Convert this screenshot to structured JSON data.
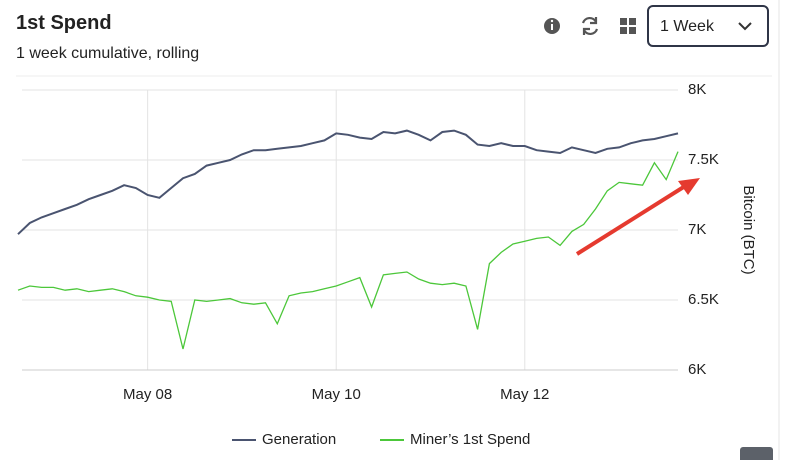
{
  "header": {
    "title": "1st Spend",
    "subtitle": "1 week cumulative, rolling",
    "range_select": "1 Week"
  },
  "chart_data": {
    "type": "line",
    "categories": [
      null,
      null,
      null,
      null,
      null,
      null,
      null,
      null,
      null,
      null,
      null,
      "May 08",
      null,
      null,
      null,
      null,
      null,
      null,
      null,
      null,
      null,
      null,
      null,
      null,
      null,
      null,
      null,
      "May 10",
      null,
      null,
      null,
      null,
      null,
      null,
      null,
      null,
      null,
      null,
      null,
      null,
      null,
      null,
      null,
      "May 12",
      null,
      null,
      null,
      null,
      null,
      null,
      null,
      null,
      null,
      null,
      null,
      null,
      null
    ],
    "series": [
      {
        "name": "Generation",
        "color": "#4a5470",
        "values": [
          6970,
          7050,
          7090,
          7120,
          7150,
          7180,
          7220,
          7250,
          7280,
          7320,
          7300,
          7250,
          7230,
          7300,
          7370,
          7400,
          7460,
          7480,
          7500,
          7540,
          7570,
          7570,
          7580,
          7590,
          7600,
          7620,
          7640,
          7690,
          7680,
          7660,
          7650,
          7700,
          7690,
          7710,
          7680,
          7640,
          7700,
          7710,
          7680,
          7610,
          7600,
          7620,
          7600,
          7600,
          7570,
          7560,
          7550,
          7590,
          7570,
          7550,
          7580,
          7590,
          7620,
          7640,
          7650,
          7670,
          7690
        ]
      },
      {
        "name": "Miner’s 1st Spend",
        "color": "#4cc73a",
        "values": [
          6570,
          6600,
          6590,
          6590,
          6570,
          6580,
          6560,
          6570,
          6580,
          6560,
          6530,
          6520,
          6500,
          6490,
          6150,
          6500,
          6490,
          6500,
          6510,
          6480,
          6470,
          6480,
          6330,
          6530,
          6550,
          6560,
          6580,
          6600,
          6630,
          6660,
          6450,
          6680,
          6690,
          6700,
          6650,
          6620,
          6610,
          6620,
          6600,
          6290,
          6760,
          6840,
          6900,
          6920,
          6940,
          6950,
          6890,
          6990,
          7040,
          7150,
          7280,
          7340,
          7330,
          7320,
          7480,
          7360,
          7560
        ]
      }
    ],
    "ylim": [
      6000,
      8000
    ],
    "yticks": [
      {
        "value": 6000,
        "label": "6K"
      },
      {
        "value": 6500,
        "label": "6.5K"
      },
      {
        "value": 7000,
        "label": "7K"
      },
      {
        "value": 7500,
        "label": "7.5K"
      },
      {
        "value": 8000,
        "label": "8K"
      }
    ],
    "y_label": "Bitcoin (BTC)",
    "grid": true
  }
}
